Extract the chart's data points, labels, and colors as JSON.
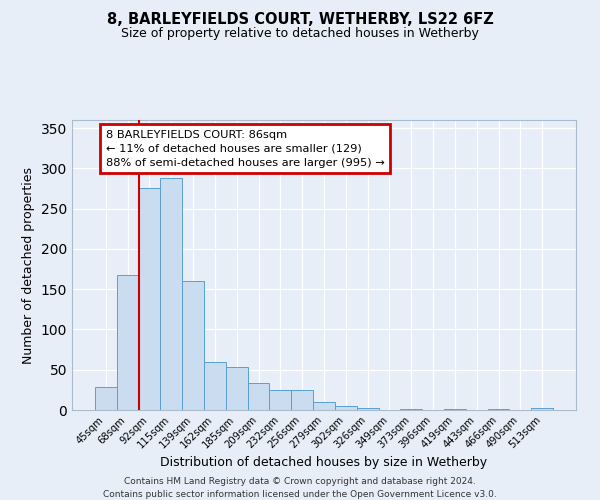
{
  "title": "8, BARLEYFIELDS COURT, WETHERBY, LS22 6FZ",
  "subtitle": "Size of property relative to detached houses in Wetherby",
  "xlabel": "Distribution of detached houses by size in Wetherby",
  "ylabel": "Number of detached properties",
  "bar_labels": [
    "45sqm",
    "68sqm",
    "92sqm",
    "115sqm",
    "139sqm",
    "162sqm",
    "185sqm",
    "209sqm",
    "232sqm",
    "256sqm",
    "279sqm",
    "302sqm",
    "326sqm",
    "349sqm",
    "373sqm",
    "396sqm",
    "419sqm",
    "443sqm",
    "466sqm",
    "490sqm",
    "513sqm"
  ],
  "bar_values": [
    29,
    168,
    276,
    288,
    160,
    59,
    53,
    33,
    25,
    25,
    10,
    5,
    2,
    0,
    1,
    0,
    1,
    0,
    1,
    0,
    3
  ],
  "bar_color": "#c9dcf0",
  "bar_edge_color": "#5a9fd4",
  "vline_color": "#cc0000",
  "annotation_title": "8 BARLEYFIELDS COURT: 86sqm",
  "annotation_line1": "← 11% of detached houses are smaller (129)",
  "annotation_line2": "88% of semi-detached houses are larger (995) →",
  "annotation_box_color": "#cc0000",
  "ylim": [
    0,
    360
  ],
  "yticks": [
    0,
    50,
    100,
    150,
    200,
    250,
    300,
    350
  ],
  "footer1": "Contains HM Land Registry data © Crown copyright and database right 2024.",
  "footer2": "Contains public sector information licensed under the Open Government Licence v3.0.",
  "background_color": "#e8eef8",
  "grid_color": "#d0d8e8",
  "plot_bg_color": "#e8eef8"
}
